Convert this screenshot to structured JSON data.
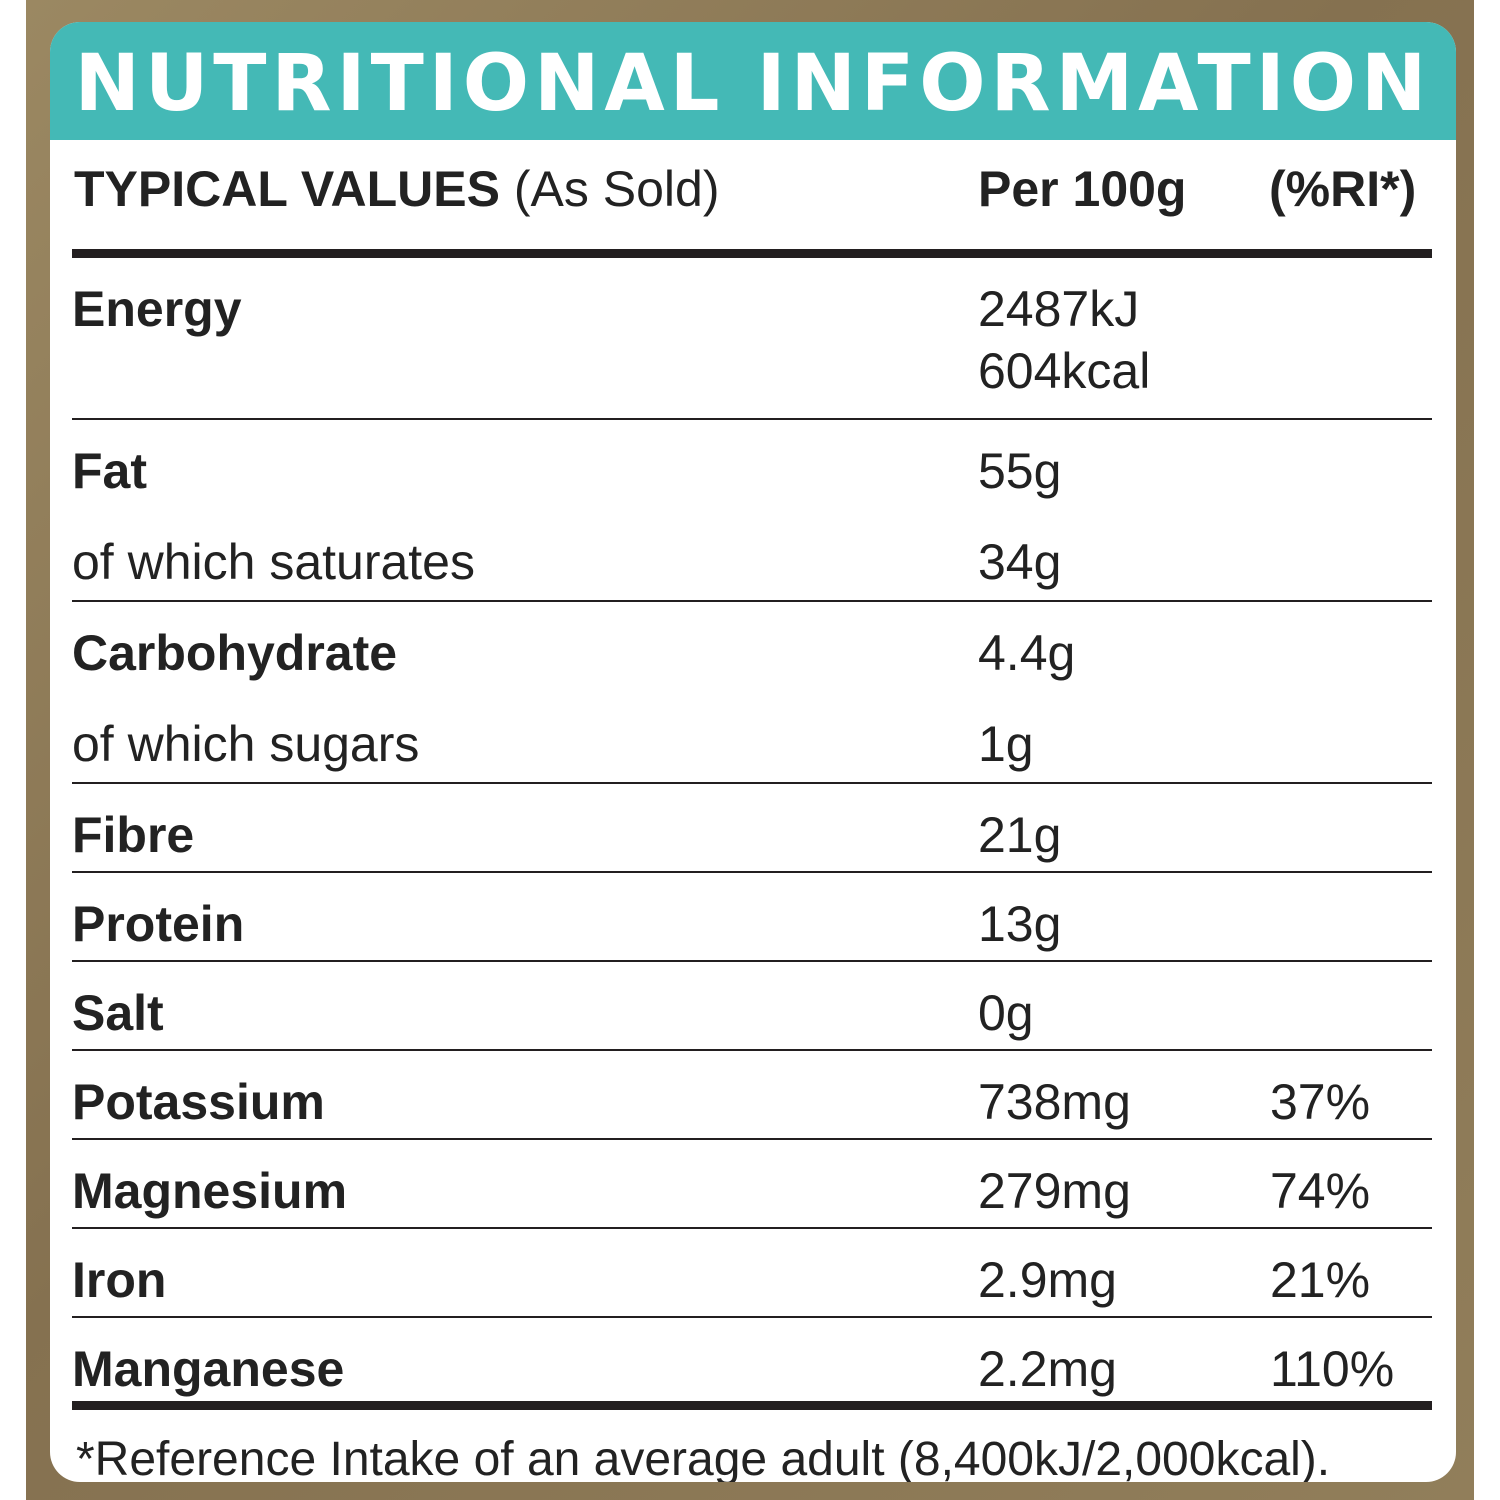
{
  "title": "NUTRITIONAL INFORMATION",
  "header": {
    "label_bold": "TYPICAL VALUES",
    "label_rest": " (As Sold)",
    "per": "Per 100g",
    "ri": "(%RI*)"
  },
  "rows": [
    {
      "name": "Energy",
      "value": "2487kJ",
      "value2": "604kcal",
      "ri": ""
    },
    {
      "name": "Fat",
      "value": "55g",
      "ri": ""
    },
    {
      "name": "of which saturates",
      "value": "34g",
      "ri": ""
    },
    {
      "name": "Carbohydrate",
      "value": "4.4g",
      "ri": ""
    },
    {
      "name": "of which sugars",
      "value": "1g",
      "ri": ""
    },
    {
      "name": "Fibre",
      "value": "21g",
      "ri": ""
    },
    {
      "name": "Protein",
      "value": "13g",
      "ri": ""
    },
    {
      "name": "Salt",
      "value": "0g",
      "ri": ""
    },
    {
      "name": "Potassium",
      "value": "738mg",
      "ri": "37%"
    },
    {
      "name": "Magnesium",
      "value": "279mg",
      "ri": "74%"
    },
    {
      "name": "Iron",
      "value": "2.9mg",
      "ri": "21%"
    },
    {
      "name": "Manganese",
      "value": "2.2mg",
      "ri": "110%"
    }
  ],
  "footnote": "*Reference Intake of an average adult (8,400kJ/2,000kcal).",
  "colors": {
    "title_bar": "#44b9b6",
    "frame": "#8f7d58",
    "text": "#222222"
  }
}
